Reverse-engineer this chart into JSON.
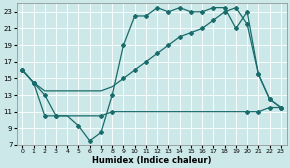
{
  "xlabel": "Humidex (Indice chaleur)",
  "bg_color": "#cce8e8",
  "line_color": "#1a6b6b",
  "grid_color": "#b0d8d8",
  "ylim": [
    7,
    24
  ],
  "xlim": [
    -0.5,
    23.5
  ],
  "yticks": [
    7,
    9,
    11,
    13,
    15,
    17,
    19,
    21,
    23
  ],
  "xticks": [
    0,
    1,
    2,
    3,
    4,
    5,
    6,
    7,
    8,
    9,
    10,
    11,
    12,
    13,
    14,
    15,
    16,
    17,
    18,
    19,
    20,
    21,
    22,
    23
  ],
  "line1_x": [
    0,
    1,
    2,
    3,
    4,
    5,
    6,
    7,
    8,
    9,
    10,
    11,
    12,
    13,
    14,
    15,
    16,
    17,
    18,
    19,
    20,
    21,
    22,
    23
  ],
  "line1_y": [
    16.0,
    14.5,
    13.0,
    10.5,
    10.5,
    9.3,
    7.5,
    8.5,
    13.0,
    19.0,
    22.5,
    22.5,
    23.5,
    23.0,
    23.5,
    23.0,
    23.0,
    23.5,
    23.5,
    21.0,
    23.0,
    15.5,
    12.5,
    11.5
  ],
  "line2_x": [
    0,
    1,
    2,
    3,
    4,
    5,
    6,
    7,
    8,
    9,
    10,
    11,
    12,
    13,
    14,
    15,
    16,
    17,
    18,
    19,
    20,
    21,
    22,
    23
  ],
  "line2_y": [
    16.0,
    14.5,
    13.5,
    13.5,
    13.5,
    13.5,
    13.5,
    13.5,
    14.0,
    15.0,
    16.0,
    17.0,
    18.0,
    19.0,
    20.0,
    20.5,
    21.0,
    22.0,
    23.0,
    23.5,
    21.5,
    15.5,
    12.5,
    11.5
  ],
  "line3_x": [
    0,
    1,
    2,
    3,
    4,
    5,
    6,
    7,
    8,
    9,
    10,
    11,
    12,
    13,
    14,
    15,
    16,
    17,
    18,
    19,
    20,
    21,
    22,
    23
  ],
  "line3_y": [
    16.0,
    14.5,
    10.5,
    10.5,
    10.5,
    10.5,
    10.5,
    10.5,
    11.0,
    11.0,
    11.0,
    11.0,
    11.0,
    11.0,
    11.0,
    11.0,
    11.0,
    11.0,
    11.0,
    11.0,
    11.0,
    11.0,
    11.5,
    11.5
  ],
  "marker_line1_x": [
    0,
    1,
    2,
    3,
    5,
    6,
    7,
    8,
    9,
    10,
    11,
    12,
    13,
    14,
    15,
    16,
    17,
    18,
    19,
    20,
    21,
    22,
    23
  ],
  "marker_line1_y": [
    16.0,
    14.5,
    13.0,
    10.5,
    9.3,
    7.5,
    8.5,
    13.0,
    19.0,
    22.5,
    22.5,
    23.5,
    23.0,
    23.5,
    23.0,
    23.0,
    23.5,
    23.5,
    21.0,
    23.0,
    15.5,
    12.5,
    11.5
  ],
  "marker_line2_x": [
    0,
    1,
    9,
    10,
    11,
    12,
    13,
    14,
    15,
    16,
    17,
    18,
    19,
    20,
    21,
    22,
    23
  ],
  "marker_line2_y": [
    16.0,
    14.5,
    15.0,
    16.0,
    17.0,
    18.0,
    19.0,
    20.0,
    20.5,
    21.0,
    22.0,
    23.0,
    23.5,
    21.5,
    15.5,
    12.5,
    11.5
  ],
  "marker_line3_x": [
    0,
    1,
    2,
    3,
    7,
    8,
    20,
    21,
    22,
    23
  ],
  "marker_line3_y": [
    16.0,
    14.5,
    10.5,
    10.5,
    10.5,
    11.0,
    11.0,
    11.0,
    11.5,
    11.5
  ]
}
